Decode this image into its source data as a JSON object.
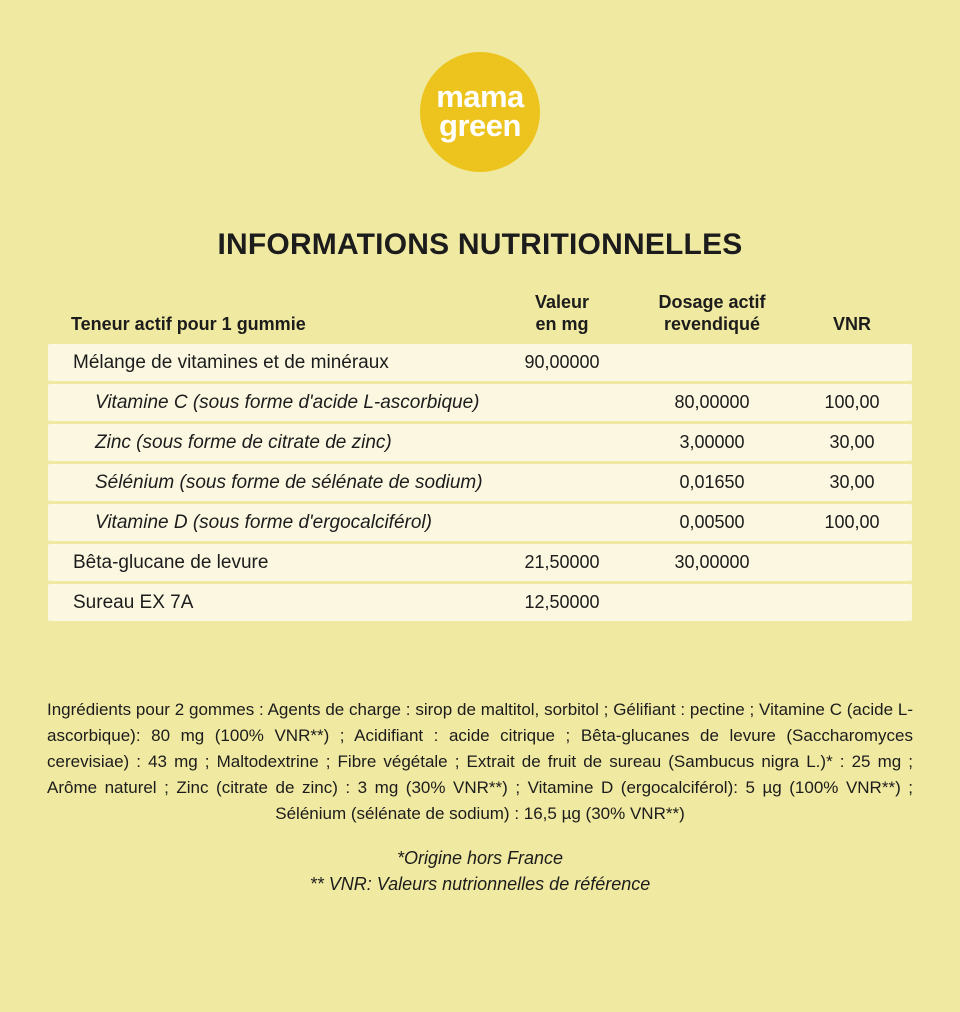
{
  "colors": {
    "page_background": "#F0E9A1",
    "row_background": "#FBF7E1",
    "logo_circle": "#EDC41E",
    "logo_text": "#FFFFFF",
    "text": "#1C1C1C"
  },
  "logo": {
    "line1": "mama",
    "line2": "green"
  },
  "title": "INFORMATIONS NUTRITIONNELLES",
  "table": {
    "headers": {
      "col1": "Teneur actif pour 1 gummie",
      "col2_l1": "Valeur",
      "col2_l2": "en mg",
      "col3_l1": "Dosage actif",
      "col3_l2": "revendiqué",
      "col4": "VNR"
    },
    "rows": [
      {
        "label": "Mélange de vitamines et de minéraux",
        "valeur_mg": "90,00000",
        "dosage": "",
        "vnr": ""
      },
      {
        "label": "Vitamine C (sous forme d'acide L-ascorbique)",
        "valeur_mg": "",
        "dosage": "80,00000",
        "vnr": "100,00"
      },
      {
        "label": "Zinc (sous forme de citrate de zinc)",
        "valeur_mg": "",
        "dosage": "3,00000",
        "vnr": "30,00"
      },
      {
        "label": "Sélénium (sous forme de sélénate de sodium)",
        "valeur_mg": "",
        "dosage": "0,01650",
        "vnr": "30,00"
      },
      {
        "label": "Vitamine D (sous forme d'ergocalciférol)",
        "valeur_mg": "",
        "dosage": "0,00500",
        "vnr": "100,00"
      },
      {
        "label": "Bêta-glucane de levure",
        "valeur_mg": "21,50000",
        "dosage": "30,00000",
        "vnr": ""
      },
      {
        "label": "Sureau EX 7A",
        "valeur_mg": "12,50000",
        "dosage": "",
        "vnr": ""
      }
    ]
  },
  "ingredients": "Ingrédients pour 2 gommes : Agents de charge : sirop de maltitol, sorbitol ; Gélifiant : pectine ; Vitamine C (acide L-ascorbique): 80 mg (100% VNR**) ; Acidifiant : acide citrique ; Bêta-glucanes de levure (Saccharomyces cerevisiae) : 43 mg ; Maltodextrine ; Fibre végétale ; Extrait de fruit de sureau (Sambucus nigra L.)* : 25 mg ; Arôme naturel ; Zinc (citrate de zinc) : 3 mg (30% VNR**) ; Vitamine D (ergocalciférol): 5 µg (100% VNR**) ; Sélénium (sélénate de sodium) : 16,5 µg (30% VNR**)",
  "footnotes": {
    "line1": "*Origine hors France",
    "line2": "** VNR: Valeurs nutrionnelles de référence"
  }
}
